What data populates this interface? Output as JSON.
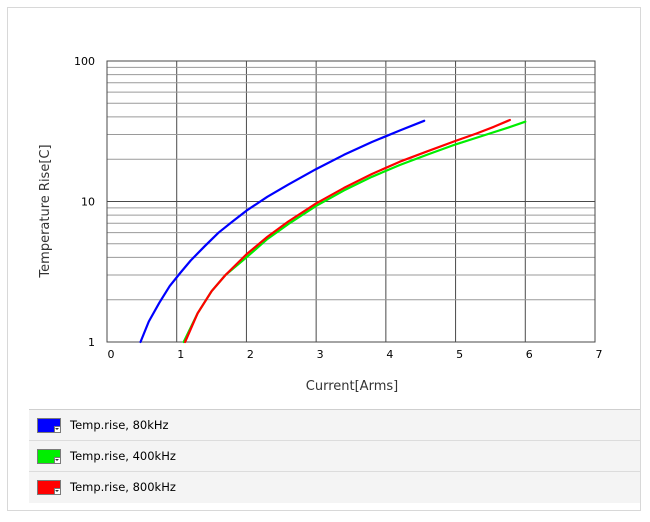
{
  "chart_data": {
    "type": "line",
    "title": "",
    "xlabel": "Current[Arms]",
    "ylabel": "Temperature Rise[C]",
    "xlim": [
      0,
      7
    ],
    "ylim": [
      1,
      100
    ],
    "y_scale": "log",
    "x_ticks": [
      0,
      1,
      2,
      3,
      4,
      5,
      6,
      7
    ],
    "x_tick_labels": [
      "0",
      "1",
      "2",
      "3",
      "4",
      "5",
      "6",
      "7"
    ],
    "y_ticks": [
      1,
      10,
      100
    ],
    "y_tick_labels": [
      "1",
      "10",
      "100"
    ],
    "grid": true,
    "legend_position": "bottom",
    "series": [
      {
        "name": "Temp.rise, 80kHz",
        "color": "#0000ff",
        "x": [
          0.48,
          0.6,
          0.75,
          0.9,
          1.05,
          1.2,
          1.4,
          1.6,
          1.8,
          2.0,
          2.3,
          2.6,
          3.0,
          3.4,
          3.8,
          4.2,
          4.55
        ],
        "y": [
          1.0,
          1.4,
          1.9,
          2.5,
          3.1,
          3.8,
          4.8,
          6.0,
          7.2,
          8.6,
          10.8,
          13.2,
          17.0,
          21.5,
          26.5,
          32.0,
          37.5
        ]
      },
      {
        "name": "Temp.rise, 400kHz",
        "color": "#00ee00",
        "x": [
          1.1,
          1.3,
          1.5,
          1.7,
          2.0,
          2.3,
          2.6,
          3.0,
          3.4,
          3.8,
          4.2,
          4.6,
          5.0,
          5.4,
          5.75,
          6.0
        ],
        "y": [
          1.0,
          1.6,
          2.3,
          3.0,
          4.0,
          5.4,
          6.9,
          9.3,
          12.0,
          15.0,
          18.2,
          21.6,
          25.5,
          29.5,
          33.5,
          37.0
        ]
      },
      {
        "name": "Temp.rise, 800kHz",
        "color": "#ff0000",
        "x": [
          1.12,
          1.3,
          1.5,
          1.7,
          2.0,
          2.3,
          2.6,
          3.0,
          3.4,
          3.8,
          4.2,
          4.6,
          5.0,
          5.3,
          5.55,
          5.78
        ],
        "y": [
          1.0,
          1.6,
          2.3,
          3.0,
          4.2,
          5.6,
          7.2,
          9.7,
          12.5,
          15.7,
          19.2,
          22.8,
          27.0,
          30.5,
          34.0,
          38.0
        ]
      }
    ]
  }
}
